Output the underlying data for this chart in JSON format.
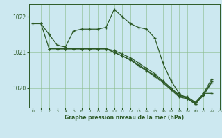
{
  "bg_color": "#cce8f0",
  "line_color": "#2d5a27",
  "grid_color": "#88bb88",
  "xlabel": "Graphe pression niveau de la mer (hPa)",
  "xlim": [
    -0.5,
    23
  ],
  "ylim": [
    1019.45,
    1022.35
  ],
  "yticks": [
    1020,
    1021,
    1022
  ],
  "xticks": [
    0,
    1,
    2,
    3,
    4,
    5,
    6,
    7,
    8,
    9,
    10,
    11,
    12,
    13,
    14,
    15,
    16,
    17,
    18,
    19,
    20,
    21,
    22,
    23
  ],
  "series": [
    {
      "xs": [
        0,
        1,
        2,
        3,
        4,
        5,
        6,
        7,
        8,
        9,
        10,
        11,
        12,
        13,
        14,
        15,
        16,
        17,
        18,
        19,
        20,
        21,
        22
      ],
      "ys": [
        1021.8,
        1021.8,
        1021.5,
        1021.2,
        1021.15,
        1021.6,
        1021.65,
        1021.65,
        1021.65,
        1021.7,
        1022.2,
        1022.0,
        1021.8,
        1021.7,
        1021.65,
        1021.4,
        1020.7,
        1020.2,
        1019.85,
        1019.7,
        1019.55,
        1019.85,
        1019.85
      ]
    },
    {
      "xs": [
        1,
        2,
        3,
        4,
        5,
        6,
        7,
        8,
        9,
        10,
        11,
        12,
        13,
        14,
        15,
        16,
        17,
        18,
        19,
        20,
        21,
        22
      ],
      "ys": [
        1021.8,
        1021.1,
        1021.1,
        1021.1,
        1021.1,
        1021.1,
        1021.1,
        1021.1,
        1021.1,
        1021.05,
        1020.95,
        1020.85,
        1020.7,
        1020.55,
        1020.4,
        1020.2,
        1020.0,
        1019.8,
        1019.75,
        1019.6,
        1019.85,
        1020.25
      ]
    },
    {
      "xs": [
        2,
        3,
        4,
        5,
        6,
        7,
        8,
        9,
        10,
        11,
        12,
        13,
        14,
        15,
        16,
        17,
        18,
        19,
        20,
        21,
        22
      ],
      "ys": [
        1021.1,
        1021.1,
        1021.1,
        1021.1,
        1021.1,
        1021.1,
        1021.1,
        1021.1,
        1021.0,
        1020.9,
        1020.8,
        1020.65,
        1020.5,
        1020.35,
        1020.18,
        1019.98,
        1019.78,
        1019.72,
        1019.58,
        1019.82,
        1020.18
      ]
    },
    {
      "xs": [
        3,
        4,
        5,
        6,
        7,
        8,
        9,
        10,
        11,
        12,
        13,
        14,
        15,
        16,
        17,
        18,
        19,
        20,
        21,
        22
      ],
      "ys": [
        1021.1,
        1021.1,
        1021.1,
        1021.1,
        1021.1,
        1021.1,
        1021.1,
        1021.0,
        1020.9,
        1020.78,
        1020.62,
        1020.48,
        1020.32,
        1020.15,
        1019.95,
        1019.75,
        1019.7,
        1019.55,
        1019.8,
        1020.15
      ]
    }
  ]
}
